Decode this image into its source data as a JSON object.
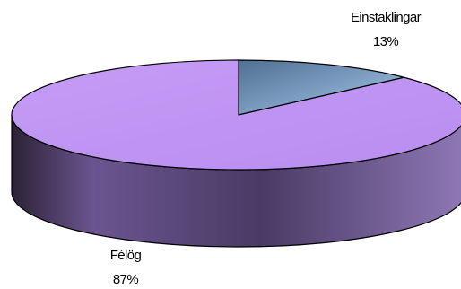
{
  "chart_data": {
    "type": "pie",
    "style": "3d",
    "categories": [
      "Einstaklingar",
      "Félög"
    ],
    "values": [
      13,
      87
    ],
    "labels": [
      {
        "name": "Einstaklingar",
        "percent": "13%"
      },
      {
        "name": "Félög",
        "percent": "87%"
      }
    ],
    "colors": {
      "Einstaklingar": "#7ba2c8",
      "Félög": "#c29af3",
      "side": "#5e4a7c",
      "edge": "#000000"
    },
    "legend": "none"
  }
}
